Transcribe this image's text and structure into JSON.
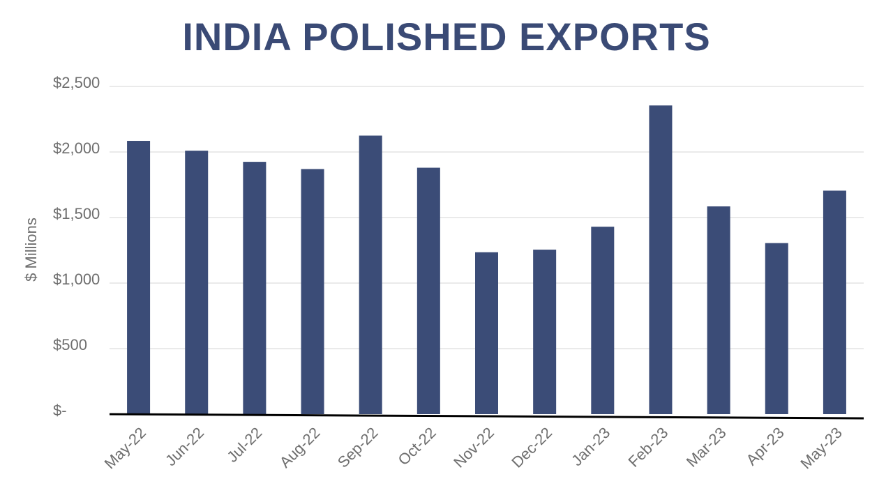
{
  "chart_data": {
    "type": "bar",
    "title": "INDIA POLISHED EXPORTS",
    "ylabel": "$ Millions",
    "xlabel": "",
    "categories": [
      "May-22",
      "Jun-22",
      "Jul-22",
      "Aug-22",
      "Sep-22",
      "Oct-22",
      "Nov-22",
      "Dec-22",
      "Jan-23",
      "Feb-23",
      "Mar-23",
      "Apr-23",
      "May-23"
    ],
    "values": [
      2085,
      2010,
      1925,
      1870,
      2125,
      1880,
      1235,
      1255,
      1430,
      2355,
      1585,
      1305,
      1705
    ],
    "ylim": [
      0,
      2500
    ],
    "yticks": [
      0,
      500,
      1000,
      1500,
      2000,
      2500
    ],
    "ytick_labels": [
      "$-",
      "$500",
      "$1,000",
      "$1,500",
      "$2,000",
      "$2,500"
    ],
    "grid": true,
    "legend": "none",
    "bar_color": "#3b4c77"
  }
}
